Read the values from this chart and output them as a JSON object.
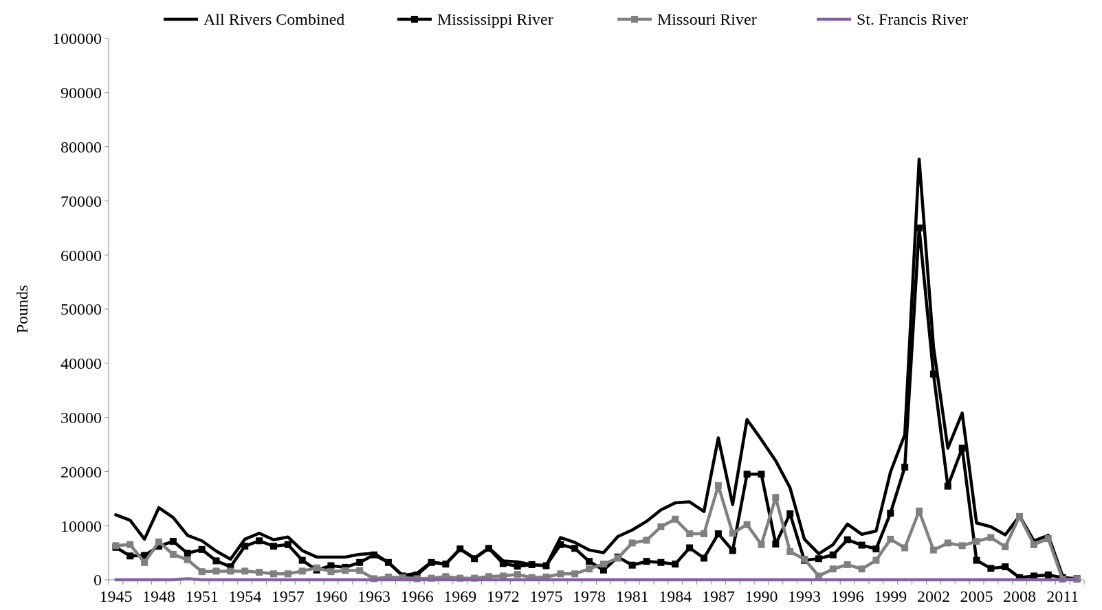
{
  "chart_data": {
    "type": "line",
    "ylabel": "Pounds",
    "ylim": [
      0,
      100000
    ],
    "yticks": [
      0,
      10000,
      20000,
      30000,
      40000,
      50000,
      60000,
      70000,
      80000,
      90000,
      100000
    ],
    "legend": "top",
    "grid": false,
    "categories": [
      "1945",
      null,
      null,
      "1948",
      null,
      null,
      "1951",
      null,
      null,
      "1954",
      null,
      null,
      "1957",
      null,
      null,
      "1960",
      null,
      null,
      "1963",
      null,
      null,
      "1966",
      null,
      null,
      "1969",
      null,
      null,
      "1972",
      null,
      null,
      "1975",
      null,
      null,
      "1978",
      null,
      null,
      "1981",
      null,
      null,
      "1984",
      null,
      null,
      "1987",
      null,
      null,
      "1990",
      null,
      null,
      "1993",
      null,
      null,
      "1996",
      null,
      null,
      "1999",
      null,
      null,
      "2002",
      null,
      null,
      "2005",
      null,
      null,
      "2008",
      null,
      null,
      "2011",
      null
    ],
    "series": [
      {
        "name": "All Rivers Combined",
        "color": "#000000",
        "marker": "none",
        "values": [
          12000,
          11000,
          7500,
          13300,
          11500,
          8200,
          7200,
          5300,
          3800,
          7500,
          8600,
          7400,
          7900,
          5400,
          4200,
          4200,
          4200,
          4700,
          4900,
          3200,
          800,
          1200,
          3300,
          2900,
          5700,
          4000,
          5900,
          3500,
          3300,
          2800,
          2600,
          7800,
          6900,
          5500,
          5000,
          8000,
          9200,
          10800,
          12900,
          14200,
          14400,
          12600,
          26200,
          13900,
          29600,
          25900,
          22000,
          17000,
          7500,
          4800,
          6500,
          10300,
          8400,
          9000,
          19900,
          26800,
          77700,
          43000,
          24300,
          30800,
          10500,
          9800,
          8300,
          11800,
          7200,
          8200,
          700,
          null
        ]
      },
      {
        "name": "Mississippi River",
        "color": "#000000",
        "marker": "square",
        "values": [
          6000,
          4400,
          4500,
          6200,
          7100,
          4900,
          5600,
          3500,
          2400,
          6200,
          7200,
          6200,
          6500,
          3600,
          1800,
          2600,
          2300,
          3200,
          4600,
          3200,
          700,
          900,
          3200,
          2900,
          5700,
          3900,
          5800,
          3000,
          2500,
          2800,
          2600,
          6500,
          5800,
          3400,
          1800,
          4200,
          2700,
          3400,
          3200,
          2900,
          5900,
          4000,
          8500,
          5400,
          19500,
          19500,
          6600,
          12200,
          3600,
          3900,
          4600,
          7400,
          6400,
          5700,
          12300,
          20800,
          65000,
          38000,
          17300,
          24300,
          3600,
          2100,
          2400,
          400,
          700,
          900,
          400,
          200
        ]
      },
      {
        "name": "Missouri River",
        "color": "#808080",
        "marker": "square",
        "values": [
          6300,
          6500,
          3200,
          7000,
          4700,
          3700,
          1500,
          1600,
          1600,
          1600,
          1400,
          1100,
          1100,
          1600,
          2200,
          1500,
          1700,
          1700,
          200,
          500,
          400,
          200,
          300,
          600,
          300,
          300,
          600,
          700,
          1000,
          400,
          500,
          1100,
          1100,
          2000,
          2900,
          4000,
          6800,
          7300,
          9800,
          11200,
          8500,
          8500,
          17400,
          8600,
          10200,
          6500,
          15200,
          5200,
          3800,
          700,
          2000,
          2800,
          2000,
          3600,
          7500,
          5900,
          12700,
          5500,
          6800,
          6300,
          7100,
          7800,
          6100,
          11700,
          6500,
          7600,
          100,
          100
        ]
      },
      {
        "name": "St. Francis River",
        "color": "#8064a2",
        "marker": "none",
        "values": [
          0,
          0,
          0,
          0,
          0,
          200,
          0,
          0,
          0,
          0,
          0,
          0,
          0,
          0,
          0,
          0,
          0,
          0,
          0,
          0,
          0,
          0,
          0,
          0,
          0,
          0,
          0,
          0,
          0,
          0,
          0,
          0,
          0,
          0,
          0,
          0,
          0,
          0,
          0,
          0,
          0,
          0,
          0,
          0,
          0,
          0,
          0,
          0,
          0,
          0,
          0,
          0,
          0,
          0,
          0,
          0,
          0,
          0,
          0,
          0,
          0,
          0,
          0,
          0,
          0,
          0,
          0,
          0
        ]
      }
    ]
  }
}
